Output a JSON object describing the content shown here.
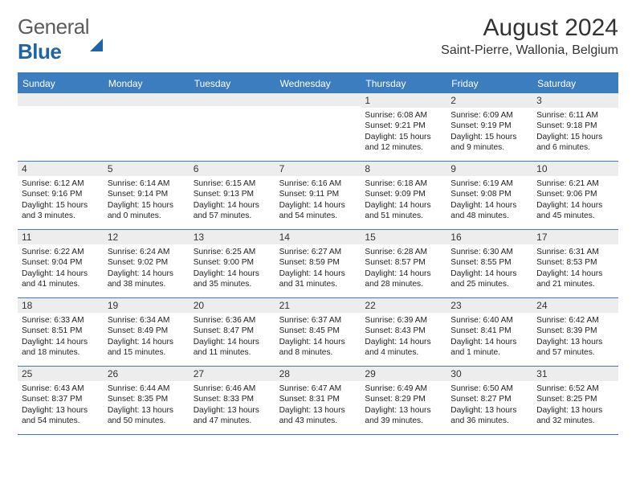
{
  "brand": {
    "part1": "General",
    "part2": "Blue"
  },
  "header": {
    "month_title": "August 2024",
    "location": "Saint-Pierre, Wallonia, Belgium"
  },
  "calendar": {
    "accent_color": "#3b7dbf",
    "daynum_bg": "#ededed",
    "text_color": "#222222",
    "day_headers": [
      "Sunday",
      "Monday",
      "Tuesday",
      "Wednesday",
      "Thursday",
      "Friday",
      "Saturday"
    ],
    "weeks": [
      [
        {
          "n": "",
          "sr": "",
          "ss": "",
          "dl": ""
        },
        {
          "n": "",
          "sr": "",
          "ss": "",
          "dl": ""
        },
        {
          "n": "",
          "sr": "",
          "ss": "",
          "dl": ""
        },
        {
          "n": "",
          "sr": "",
          "ss": "",
          "dl": ""
        },
        {
          "n": "1",
          "sr": "Sunrise: 6:08 AM",
          "ss": "Sunset: 9:21 PM",
          "dl": "Daylight: 15 hours and 12 minutes."
        },
        {
          "n": "2",
          "sr": "Sunrise: 6:09 AM",
          "ss": "Sunset: 9:19 PM",
          "dl": "Daylight: 15 hours and 9 minutes."
        },
        {
          "n": "3",
          "sr": "Sunrise: 6:11 AM",
          "ss": "Sunset: 9:18 PM",
          "dl": "Daylight: 15 hours and 6 minutes."
        }
      ],
      [
        {
          "n": "4",
          "sr": "Sunrise: 6:12 AM",
          "ss": "Sunset: 9:16 PM",
          "dl": "Daylight: 15 hours and 3 minutes."
        },
        {
          "n": "5",
          "sr": "Sunrise: 6:14 AM",
          "ss": "Sunset: 9:14 PM",
          "dl": "Daylight: 15 hours and 0 minutes."
        },
        {
          "n": "6",
          "sr": "Sunrise: 6:15 AM",
          "ss": "Sunset: 9:13 PM",
          "dl": "Daylight: 14 hours and 57 minutes."
        },
        {
          "n": "7",
          "sr": "Sunrise: 6:16 AM",
          "ss": "Sunset: 9:11 PM",
          "dl": "Daylight: 14 hours and 54 minutes."
        },
        {
          "n": "8",
          "sr": "Sunrise: 6:18 AM",
          "ss": "Sunset: 9:09 PM",
          "dl": "Daylight: 14 hours and 51 minutes."
        },
        {
          "n": "9",
          "sr": "Sunrise: 6:19 AM",
          "ss": "Sunset: 9:08 PM",
          "dl": "Daylight: 14 hours and 48 minutes."
        },
        {
          "n": "10",
          "sr": "Sunrise: 6:21 AM",
          "ss": "Sunset: 9:06 PM",
          "dl": "Daylight: 14 hours and 45 minutes."
        }
      ],
      [
        {
          "n": "11",
          "sr": "Sunrise: 6:22 AM",
          "ss": "Sunset: 9:04 PM",
          "dl": "Daylight: 14 hours and 41 minutes."
        },
        {
          "n": "12",
          "sr": "Sunrise: 6:24 AM",
          "ss": "Sunset: 9:02 PM",
          "dl": "Daylight: 14 hours and 38 minutes."
        },
        {
          "n": "13",
          "sr": "Sunrise: 6:25 AM",
          "ss": "Sunset: 9:00 PM",
          "dl": "Daylight: 14 hours and 35 minutes."
        },
        {
          "n": "14",
          "sr": "Sunrise: 6:27 AM",
          "ss": "Sunset: 8:59 PM",
          "dl": "Daylight: 14 hours and 31 minutes."
        },
        {
          "n": "15",
          "sr": "Sunrise: 6:28 AM",
          "ss": "Sunset: 8:57 PM",
          "dl": "Daylight: 14 hours and 28 minutes."
        },
        {
          "n": "16",
          "sr": "Sunrise: 6:30 AM",
          "ss": "Sunset: 8:55 PM",
          "dl": "Daylight: 14 hours and 25 minutes."
        },
        {
          "n": "17",
          "sr": "Sunrise: 6:31 AM",
          "ss": "Sunset: 8:53 PM",
          "dl": "Daylight: 14 hours and 21 minutes."
        }
      ],
      [
        {
          "n": "18",
          "sr": "Sunrise: 6:33 AM",
          "ss": "Sunset: 8:51 PM",
          "dl": "Daylight: 14 hours and 18 minutes."
        },
        {
          "n": "19",
          "sr": "Sunrise: 6:34 AM",
          "ss": "Sunset: 8:49 PM",
          "dl": "Daylight: 14 hours and 15 minutes."
        },
        {
          "n": "20",
          "sr": "Sunrise: 6:36 AM",
          "ss": "Sunset: 8:47 PM",
          "dl": "Daylight: 14 hours and 11 minutes."
        },
        {
          "n": "21",
          "sr": "Sunrise: 6:37 AM",
          "ss": "Sunset: 8:45 PM",
          "dl": "Daylight: 14 hours and 8 minutes."
        },
        {
          "n": "22",
          "sr": "Sunrise: 6:39 AM",
          "ss": "Sunset: 8:43 PM",
          "dl": "Daylight: 14 hours and 4 minutes."
        },
        {
          "n": "23",
          "sr": "Sunrise: 6:40 AM",
          "ss": "Sunset: 8:41 PM",
          "dl": "Daylight: 14 hours and 1 minute."
        },
        {
          "n": "24",
          "sr": "Sunrise: 6:42 AM",
          "ss": "Sunset: 8:39 PM",
          "dl": "Daylight: 13 hours and 57 minutes."
        }
      ],
      [
        {
          "n": "25",
          "sr": "Sunrise: 6:43 AM",
          "ss": "Sunset: 8:37 PM",
          "dl": "Daylight: 13 hours and 54 minutes."
        },
        {
          "n": "26",
          "sr": "Sunrise: 6:44 AM",
          "ss": "Sunset: 8:35 PM",
          "dl": "Daylight: 13 hours and 50 minutes."
        },
        {
          "n": "27",
          "sr": "Sunrise: 6:46 AM",
          "ss": "Sunset: 8:33 PM",
          "dl": "Daylight: 13 hours and 47 minutes."
        },
        {
          "n": "28",
          "sr": "Sunrise: 6:47 AM",
          "ss": "Sunset: 8:31 PM",
          "dl": "Daylight: 13 hours and 43 minutes."
        },
        {
          "n": "29",
          "sr": "Sunrise: 6:49 AM",
          "ss": "Sunset: 8:29 PM",
          "dl": "Daylight: 13 hours and 39 minutes."
        },
        {
          "n": "30",
          "sr": "Sunrise: 6:50 AM",
          "ss": "Sunset: 8:27 PM",
          "dl": "Daylight: 13 hours and 36 minutes."
        },
        {
          "n": "31",
          "sr": "Sunrise: 6:52 AM",
          "ss": "Sunset: 8:25 PM",
          "dl": "Daylight: 13 hours and 32 minutes."
        }
      ]
    ]
  }
}
